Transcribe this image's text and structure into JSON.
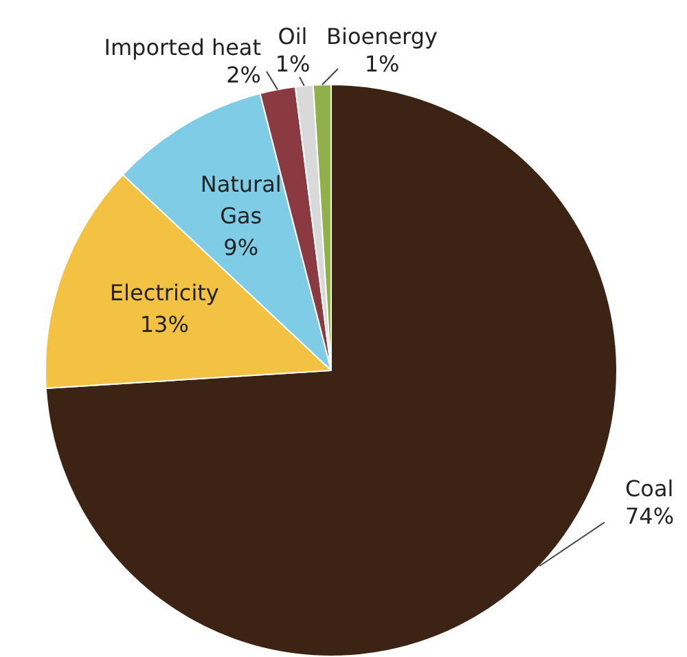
{
  "chart_data": {
    "type": "pie",
    "categories": [
      "Coal",
      "Electricity",
      "Natural Gas",
      "Imported heat",
      "Oil",
      "Bioenergy"
    ],
    "values": [
      74,
      13,
      9,
      2,
      1,
      1
    ],
    "value_labels": [
      "74%",
      "13%",
      "9%",
      "2%",
      "1%",
      "1%"
    ],
    "colors": [
      "#3d2314",
      "#f4c242",
      "#7ecce6",
      "#8b3a42",
      "#d9d9d9",
      "#8fb04a"
    ],
    "legend": false
  }
}
